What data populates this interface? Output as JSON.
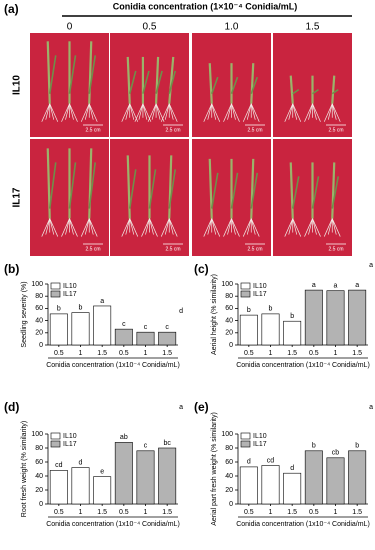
{
  "panel_a": {
    "panel_label": "(a)",
    "header": "Conidia concentration (1×10⁻⁴ Conidia/mL)",
    "columns": [
      "0",
      "0.5",
      "1.0",
      "1.5"
    ],
    "rows": [
      "IL10",
      "IL17"
    ],
    "scale_label": "2.5 cm"
  },
  "chart_data": [
    {
      "type": "bar",
      "panel_label": "(b)",
      "y_label": "Seedling severity (%)",
      "x_label": "Conidia concentration (1x10⁻⁴ Conidia/mL)",
      "categories": [
        "0.5",
        "1",
        "1.5"
      ],
      "series": [
        {
          "name": "IL10",
          "color": "#ffffff",
          "values": [
            51,
            53,
            64
          ],
          "letters": [
            "b",
            "b",
            "a"
          ]
        },
        {
          "name": "IL17",
          "color": "#b3b3b3",
          "values": [
            26,
            21,
            21
          ],
          "letters": [
            "c",
            "c",
            "c"
          ]
        }
      ],
      "control_label": "d",
      "ylim": [
        0,
        100
      ],
      "yticks": [
        0,
        20,
        40,
        60,
        80,
        100
      ]
    },
    {
      "type": "bar",
      "panel_label": "(c)",
      "y_label": "Aerial height (% similarity)",
      "x_label": "Conidia concentration (1x10⁻⁴ Conidia/mL)",
      "categories": [
        "0.5",
        "1",
        "1.5"
      ],
      "series": [
        {
          "name": "IL10",
          "color": "#ffffff",
          "values": [
            49,
            51,
            39
          ],
          "letters": [
            "b",
            "b",
            "b"
          ]
        },
        {
          "name": "IL17",
          "color": "#b3b3b3",
          "values": [
            90,
            89,
            90
          ],
          "letters": [
            "a",
            "a",
            "a"
          ]
        }
      ],
      "control_label": "a",
      "ylim": [
        0,
        100
      ],
      "yticks": [
        0,
        20,
        40,
        60,
        80,
        100
      ]
    },
    {
      "type": "bar",
      "panel_label": "(d)",
      "y_label": "Root fresh weight (% similarity)",
      "x_label": "Conidia concentration (1x10⁻⁴ Conidia/mL)",
      "categories": [
        "0.5",
        "1",
        "1.5"
      ],
      "series": [
        {
          "name": "IL10",
          "color": "#ffffff",
          "values": [
            48,
            52,
            39
          ],
          "letters": [
            "cd",
            "d",
            "e"
          ]
        },
        {
          "name": "IL17",
          "color": "#b3b3b3",
          "values": [
            88,
            76,
            80
          ],
          "letters": [
            "ab",
            "c",
            "bc"
          ]
        }
      ],
      "control_label": "a",
      "ylim": [
        0,
        100
      ],
      "yticks": [
        0,
        20,
        40,
        60,
        80,
        100
      ]
    },
    {
      "type": "bar",
      "panel_label": "(e)",
      "y_label": "Aerial part fresh weight (% similarity)",
      "x_label": "Conidia concentration (1x10⁻⁴ Conidia/mL)",
      "categories": [
        "0.5",
        "1",
        "1.5"
      ],
      "series": [
        {
          "name": "IL10",
          "color": "#ffffff",
          "values": [
            53,
            55,
            44
          ],
          "letters": [
            "d",
            "cd",
            "d"
          ]
        },
        {
          "name": "IL17",
          "color": "#b3b3b3",
          "values": [
            76,
            66,
            76
          ],
          "letters": [
            "b",
            "cb",
            "b"
          ]
        }
      ],
      "control_label": "a",
      "ylim": [
        0,
        100
      ],
      "yticks": [
        0,
        20,
        40,
        60,
        80,
        100
      ]
    }
  ]
}
